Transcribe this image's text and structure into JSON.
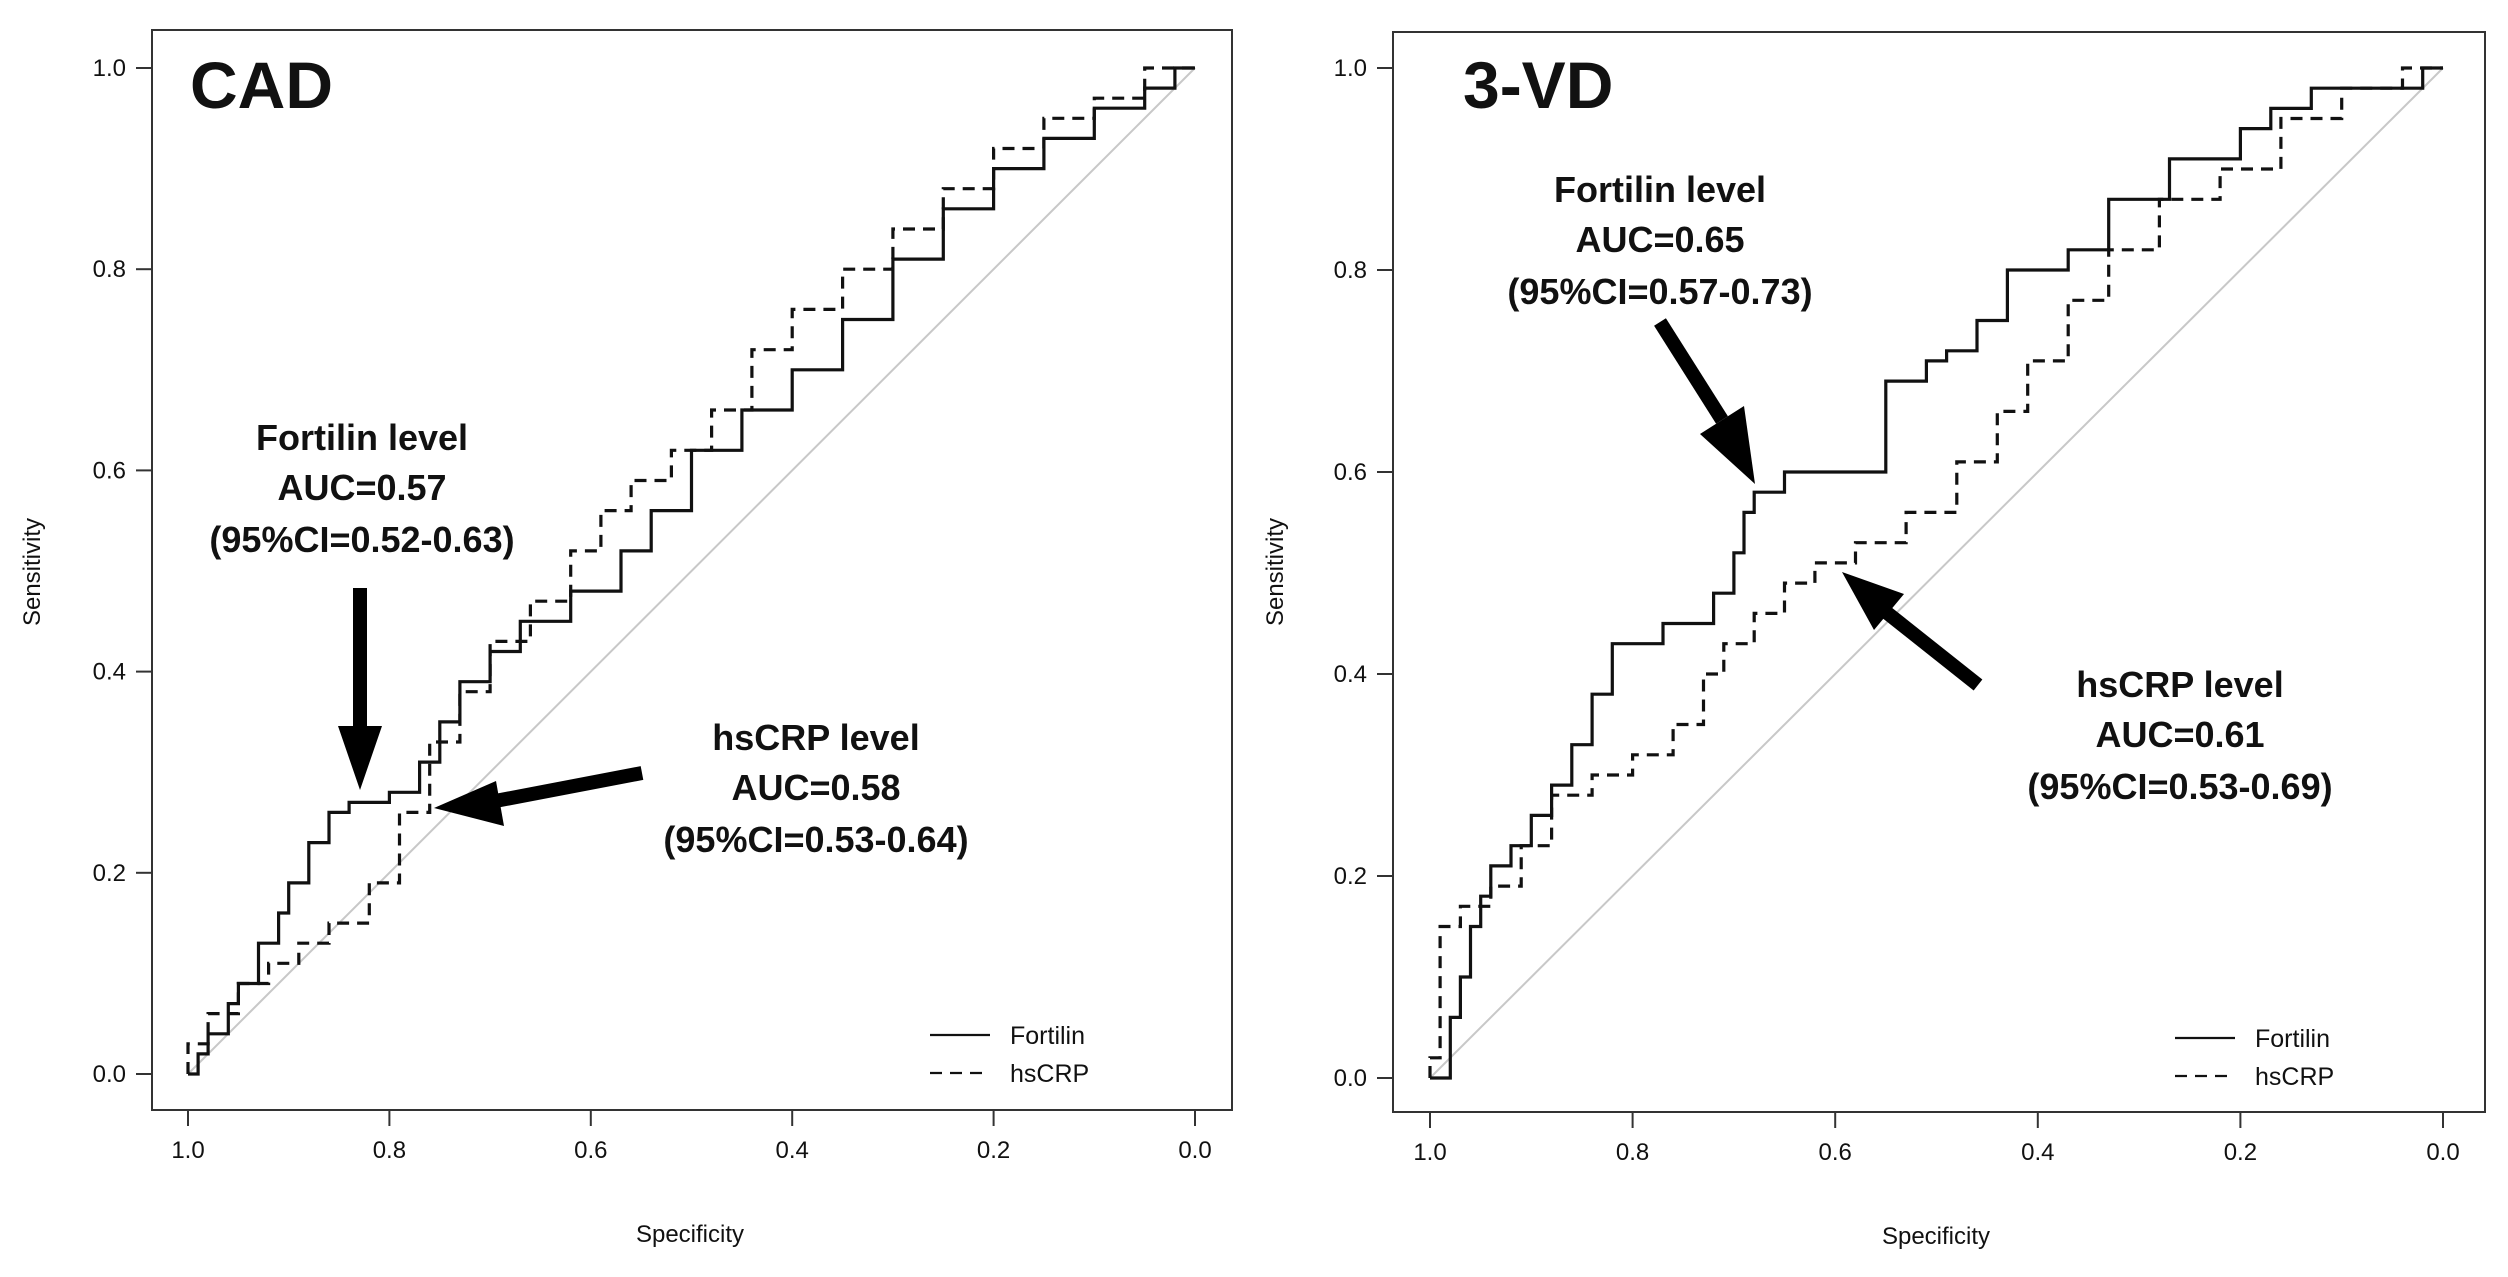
{
  "chart_data": [
    {
      "type": "line",
      "panel_id": "cad",
      "title": "CAD",
      "xlabel": "Specificity",
      "ylabel": "Sensitivity",
      "xlim": [
        1.0,
        0.0
      ],
      "ylim": [
        0.0,
        1.0
      ],
      "x_ticks": [
        "1.0",
        "0.8",
        "0.6",
        "0.4",
        "0.2",
        "0.0"
      ],
      "y_ticks": [
        "0.0",
        "0.2",
        "0.4",
        "0.6",
        "0.8",
        "1.0"
      ],
      "legend": {
        "position": "bottom-right",
        "entries": [
          "Fortilin",
          "hsCRP"
        ]
      },
      "series": [
        {
          "name": "Fortilin",
          "style": "solid",
          "specificity": [
            1.0,
            0.99,
            0.99,
            0.98,
            0.98,
            0.96,
            0.96,
            0.95,
            0.95,
            0.93,
            0.93,
            0.91,
            0.91,
            0.9,
            0.9,
            0.88,
            0.88,
            0.86,
            0.86,
            0.84,
            0.84,
            0.8,
            0.8,
            0.77,
            0.77,
            0.75,
            0.75,
            0.73,
            0.73,
            0.7,
            0.7,
            0.67,
            0.67,
            0.62,
            0.62,
            0.57,
            0.57,
            0.54,
            0.54,
            0.5,
            0.5,
            0.45,
            0.45,
            0.4,
            0.4,
            0.35,
            0.35,
            0.3,
            0.3,
            0.25,
            0.25,
            0.2,
            0.2,
            0.15,
            0.15,
            0.1,
            0.1,
            0.05,
            0.05,
            0.02,
            0.02,
            0.0
          ],
          "sensitivity": [
            0.0,
            0.0,
            0.02,
            0.02,
            0.04,
            0.04,
            0.07,
            0.07,
            0.09,
            0.09,
            0.13,
            0.13,
            0.16,
            0.16,
            0.19,
            0.19,
            0.23,
            0.23,
            0.26,
            0.26,
            0.27,
            0.27,
            0.28,
            0.28,
            0.31,
            0.31,
            0.35,
            0.35,
            0.39,
            0.39,
            0.42,
            0.42,
            0.45,
            0.45,
            0.48,
            0.48,
            0.52,
            0.52,
            0.56,
            0.56,
            0.62,
            0.62,
            0.66,
            0.66,
            0.7,
            0.7,
            0.75,
            0.75,
            0.81,
            0.81,
            0.86,
            0.86,
            0.9,
            0.9,
            0.93,
            0.93,
            0.96,
            0.96,
            0.98,
            0.98,
            1.0,
            1.0
          ]
        },
        {
          "name": "hsCRP",
          "style": "dashed",
          "specificity": [
            1.0,
            1.0,
            0.98,
            0.98,
            0.95,
            0.95,
            0.92,
            0.92,
            0.89,
            0.89,
            0.86,
            0.86,
            0.82,
            0.82,
            0.79,
            0.79,
            0.76,
            0.76,
            0.73,
            0.73,
            0.7,
            0.7,
            0.66,
            0.66,
            0.62,
            0.62,
            0.59,
            0.59,
            0.56,
            0.56,
            0.52,
            0.52,
            0.48,
            0.48,
            0.44,
            0.44,
            0.4,
            0.4,
            0.35,
            0.35,
            0.3,
            0.3,
            0.25,
            0.25,
            0.2,
            0.2,
            0.15,
            0.15,
            0.1,
            0.1,
            0.05,
            0.05,
            0.0
          ],
          "sensitivity": [
            0.0,
            0.03,
            0.03,
            0.06,
            0.06,
            0.09,
            0.09,
            0.11,
            0.11,
            0.13,
            0.13,
            0.15,
            0.15,
            0.19,
            0.19,
            0.26,
            0.26,
            0.33,
            0.33,
            0.38,
            0.38,
            0.43,
            0.43,
            0.47,
            0.47,
            0.52,
            0.52,
            0.56,
            0.56,
            0.59,
            0.59,
            0.62,
            0.62,
            0.66,
            0.66,
            0.72,
            0.72,
            0.76,
            0.76,
            0.8,
            0.8,
            0.84,
            0.84,
            0.88,
            0.88,
            0.92,
            0.92,
            0.95,
            0.95,
            0.97,
            0.97,
            1.0,
            1.0
          ]
        }
      ],
      "annotations": [
        {
          "id": "fortilin",
          "lines": [
            "Fortilin level",
            "AUC=0.57",
            "(95%CI=0.52-0.63)"
          ],
          "arrow_target": [
            0.83,
            0.27
          ]
        },
        {
          "id": "hscrp",
          "lines": [
            "hsCRP level",
            "AUC=0.58",
            "(95%CI=0.53-0.64)"
          ],
          "arrow_target": [
            0.76,
            0.265
          ]
        }
      ]
    },
    {
      "type": "line",
      "panel_id": "3vd",
      "title": "3-VD",
      "xlabel": "Specificity",
      "ylabel": "Sensitivity",
      "xlim": [
        1.0,
        0.0
      ],
      "ylim": [
        0.0,
        1.0
      ],
      "x_ticks": [
        "1.0",
        "0.8",
        "0.6",
        "0.4",
        "0.2",
        "0.0"
      ],
      "y_ticks": [
        "0.0",
        "0.2",
        "0.4",
        "0.6",
        "0.8",
        "1.0"
      ],
      "legend": {
        "position": "bottom-right",
        "entries": [
          "Fortilin",
          "hsCRP"
        ]
      },
      "series": [
        {
          "name": "Fortilin",
          "style": "solid",
          "specificity": [
            1.0,
            0.98,
            0.98,
            0.97,
            0.97,
            0.96,
            0.96,
            0.95,
            0.95,
            0.94,
            0.94,
            0.92,
            0.92,
            0.9,
            0.9,
            0.88,
            0.88,
            0.86,
            0.86,
            0.84,
            0.84,
            0.82,
            0.82,
            0.77,
            0.77,
            0.72,
            0.72,
            0.7,
            0.7,
            0.69,
            0.69,
            0.68,
            0.68,
            0.65,
            0.65,
            0.55,
            0.55,
            0.51,
            0.51,
            0.49,
            0.49,
            0.46,
            0.46,
            0.43,
            0.43,
            0.37,
            0.37,
            0.33,
            0.33,
            0.27,
            0.27,
            0.2,
            0.2,
            0.17,
            0.17,
            0.13,
            0.13,
            0.02,
            0.02,
            0.0
          ],
          "sensitivity": [
            0.0,
            0.0,
            0.06,
            0.06,
            0.1,
            0.1,
            0.15,
            0.15,
            0.18,
            0.18,
            0.21,
            0.21,
            0.23,
            0.23,
            0.26,
            0.26,
            0.29,
            0.29,
            0.33,
            0.33,
            0.38,
            0.38,
            0.43,
            0.43,
            0.45,
            0.45,
            0.48,
            0.48,
            0.52,
            0.52,
            0.56,
            0.56,
            0.58,
            0.58,
            0.6,
            0.6,
            0.69,
            0.69,
            0.71,
            0.71,
            0.72,
            0.72,
            0.75,
            0.75,
            0.8,
            0.8,
            0.82,
            0.82,
            0.87,
            0.87,
            0.91,
            0.91,
            0.94,
            0.94,
            0.96,
            0.96,
            0.98,
            0.98,
            1.0,
            1.0
          ]
        },
        {
          "name": "hsCRP",
          "style": "dashed",
          "specificity": [
            1.0,
            1.0,
            0.99,
            0.99,
            0.97,
            0.97,
            0.94,
            0.94,
            0.91,
            0.91,
            0.88,
            0.88,
            0.84,
            0.84,
            0.8,
            0.8,
            0.76,
            0.76,
            0.73,
            0.73,
            0.71,
            0.71,
            0.68,
            0.68,
            0.65,
            0.65,
            0.62,
            0.62,
            0.58,
            0.58,
            0.53,
            0.53,
            0.48,
            0.48,
            0.44,
            0.44,
            0.41,
            0.41,
            0.37,
            0.37,
            0.33,
            0.33,
            0.28,
            0.28,
            0.22,
            0.22,
            0.16,
            0.16,
            0.1,
            0.1,
            0.04,
            0.04,
            0.0
          ],
          "sensitivity": [
            0.0,
            0.02,
            0.02,
            0.15,
            0.15,
            0.17,
            0.17,
            0.19,
            0.19,
            0.23,
            0.23,
            0.28,
            0.28,
            0.3,
            0.3,
            0.32,
            0.32,
            0.35,
            0.35,
            0.4,
            0.4,
            0.43,
            0.43,
            0.46,
            0.46,
            0.49,
            0.49,
            0.51,
            0.51,
            0.53,
            0.53,
            0.56,
            0.56,
            0.61,
            0.61,
            0.66,
            0.66,
            0.71,
            0.71,
            0.77,
            0.77,
            0.82,
            0.82,
            0.87,
            0.87,
            0.9,
            0.9,
            0.95,
            0.95,
            0.98,
            0.98,
            1.0,
            1.0
          ]
        }
      ],
      "annotations": [
        {
          "id": "fortilin",
          "lines": [
            "Fortilin level",
            "AUC=0.65",
            "(95%CI=0.57-0.73)"
          ],
          "arrow_target": [
            0.69,
            0.58
          ]
        },
        {
          "id": "hscrp",
          "lines": [
            "hsCRP level",
            "AUC=0.61",
            "(95%CI=0.53-0.69)"
          ],
          "arrow_target": [
            0.6,
            0.51
          ]
        }
      ]
    }
  ]
}
